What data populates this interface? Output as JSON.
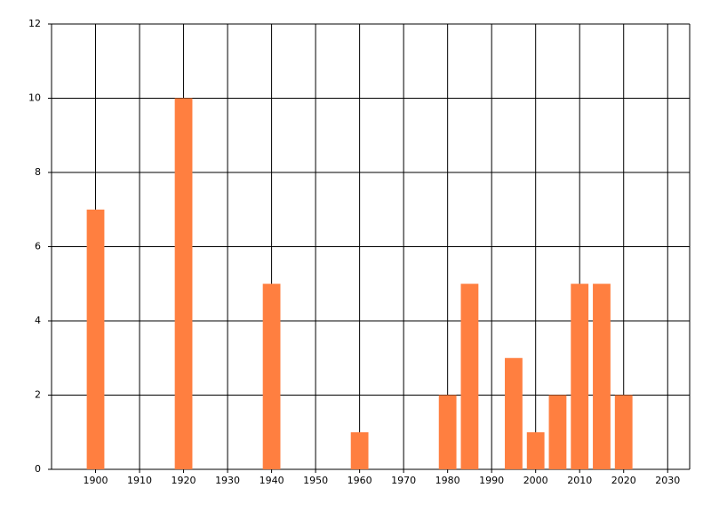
{
  "chart_data": {
    "type": "bar",
    "x": [
      1900,
      1920,
      1940,
      1960,
      1980,
      1985,
      1995,
      2000,
      2005,
      2010,
      2015,
      2020
    ],
    "values": [
      7,
      10,
      5,
      1,
      2,
      5,
      3,
      1,
      2,
      5,
      5,
      2
    ],
    "color": "#ff7f40",
    "xlim": [
      1890,
      2035
    ],
    "xticks": [
      1900,
      1910,
      1920,
      1930,
      1940,
      1950,
      1960,
      1970,
      1980,
      1990,
      2000,
      2010,
      2020,
      2030
    ],
    "ylim": [
      0,
      12
    ],
    "yticks": [
      0,
      2,
      4,
      6,
      8,
      10,
      12
    ],
    "grid": true
  }
}
